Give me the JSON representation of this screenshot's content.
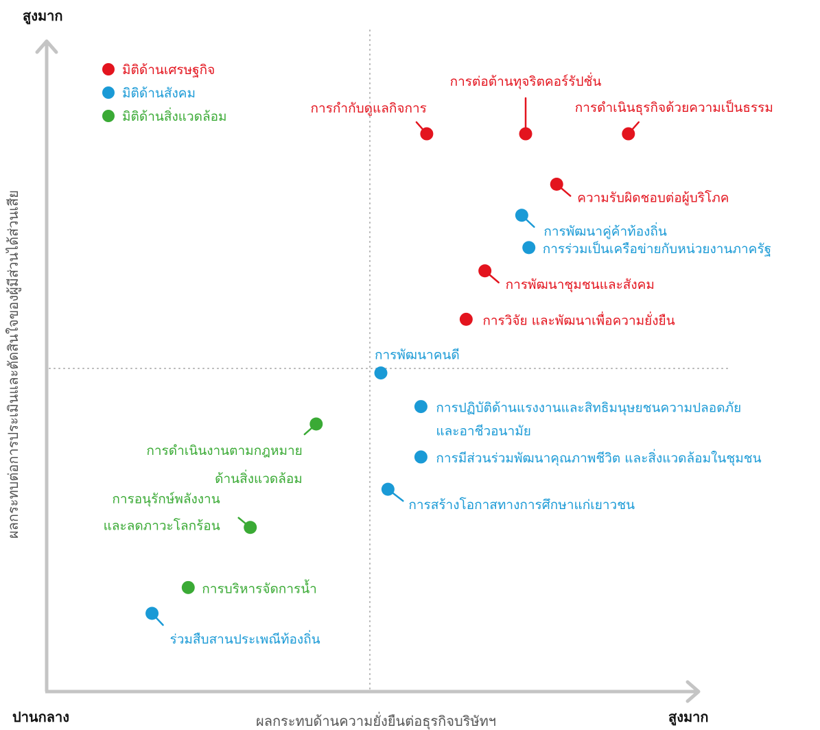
{
  "chart_data": {
    "type": "scatter",
    "title": "",
    "xlabel": "ผลกระทบด้านความยั่งยืนต่อธุรกิจบริษัทฯ",
    "ylabel": "ผลกระทบต่อการประเมินและตัดสินใจของผู้มีส่วนได้ส่วนเสีย",
    "x_min_label": "ปานกลาง",
    "x_max_label": "สูงมาก",
    "y_max_label": "สูงมาก",
    "xlim": [
      0,
      100
    ],
    "ylim": [
      0,
      100
    ],
    "grid": false,
    "quadrant_lines": {
      "x": 50,
      "y": 50
    },
    "legend_position": "top-left",
    "categories": [
      {
        "id": "economic",
        "name": "มิติด้านเศรษฐกิจ",
        "color": "#e3141e"
      },
      {
        "id": "social",
        "name": "มิติด้านสังคม",
        "color": "#1a9ad6"
      },
      {
        "id": "environment",
        "name": "มิติด้านสิ่งแวดล้อม",
        "color": "#3aaa35"
      }
    ],
    "points": [
      {
        "label": "การกำกับดูแลกิจการ",
        "category": "economic",
        "x": 58.8,
        "y": 86.3
      },
      {
        "label": "การต่อต้านทุจริตคอร์รัปชั่น",
        "category": "economic",
        "x": 74.1,
        "y": 86.3
      },
      {
        "label": "การดำเนินธุรกิจด้วยความเป็นธรรม",
        "category": "economic",
        "x": 90.0,
        "y": 86.3
      },
      {
        "label": "ความรับผิดชอบต่อผู้บริโภค",
        "category": "economic",
        "x": 78.9,
        "y": 78.5
      },
      {
        "label": "การพัฒนาคู่ค้าท้องถิ่น",
        "category": "social",
        "x": 73.5,
        "y": 73.7
      },
      {
        "label": "การร่วมเป็นเครือข่ายกับหน่วยงานภาครัฐ",
        "category": "social",
        "x": 74.6,
        "y": 68.7
      },
      {
        "label": "การพัฒนาชุมชนและสังคม",
        "category": "economic",
        "x": 67.8,
        "y": 65.1
      },
      {
        "label": "การวิจัย และพัฒนาเพื่อความยั่งยืน",
        "category": "economic",
        "x": 64.9,
        "y": 57.6
      },
      {
        "label": "การพัฒนาคนดี",
        "category": "social",
        "x": 51.7,
        "y": 49.3
      },
      {
        "label": "การปฏิบัติด้านแรงงานและสิทธิมนุษยชนความปลอดภัย",
        "label2": "และอาชีวอนามัย",
        "category": "social",
        "x": 57.9,
        "y": 44.1
      },
      {
        "label": "การมีส่วนร่วมพัฒนาคุณภาพชีวิต และสิ่งแวดล้อมในชุมชน",
        "category": "social",
        "x": 57.9,
        "y": 36.3
      },
      {
        "label": "การสร้างโอกาสทางการศึกษาแก่เยาวชน",
        "category": "social",
        "x": 52.8,
        "y": 31.3
      },
      {
        "label": "การดำเนินงานตามกฎหมาย",
        "label2": "ด้านสิ่งแวดล้อม",
        "category": "environment",
        "x": 41.7,
        "y": 41.4
      },
      {
        "label": "การอนุรักษ์พลังงาน",
        "label2": "และลดภาวะโลกร้อน",
        "category": "environment",
        "x": 31.5,
        "y": 25.4
      },
      {
        "label": "การบริหารจัดการน้ำ",
        "category": "environment",
        "x": 21.9,
        "y": 16.1
      },
      {
        "label": "ร่วมสืบสานประเพณีท้องถิ่น",
        "category": "social",
        "x": 16.3,
        "y": 12.1
      }
    ]
  }
}
